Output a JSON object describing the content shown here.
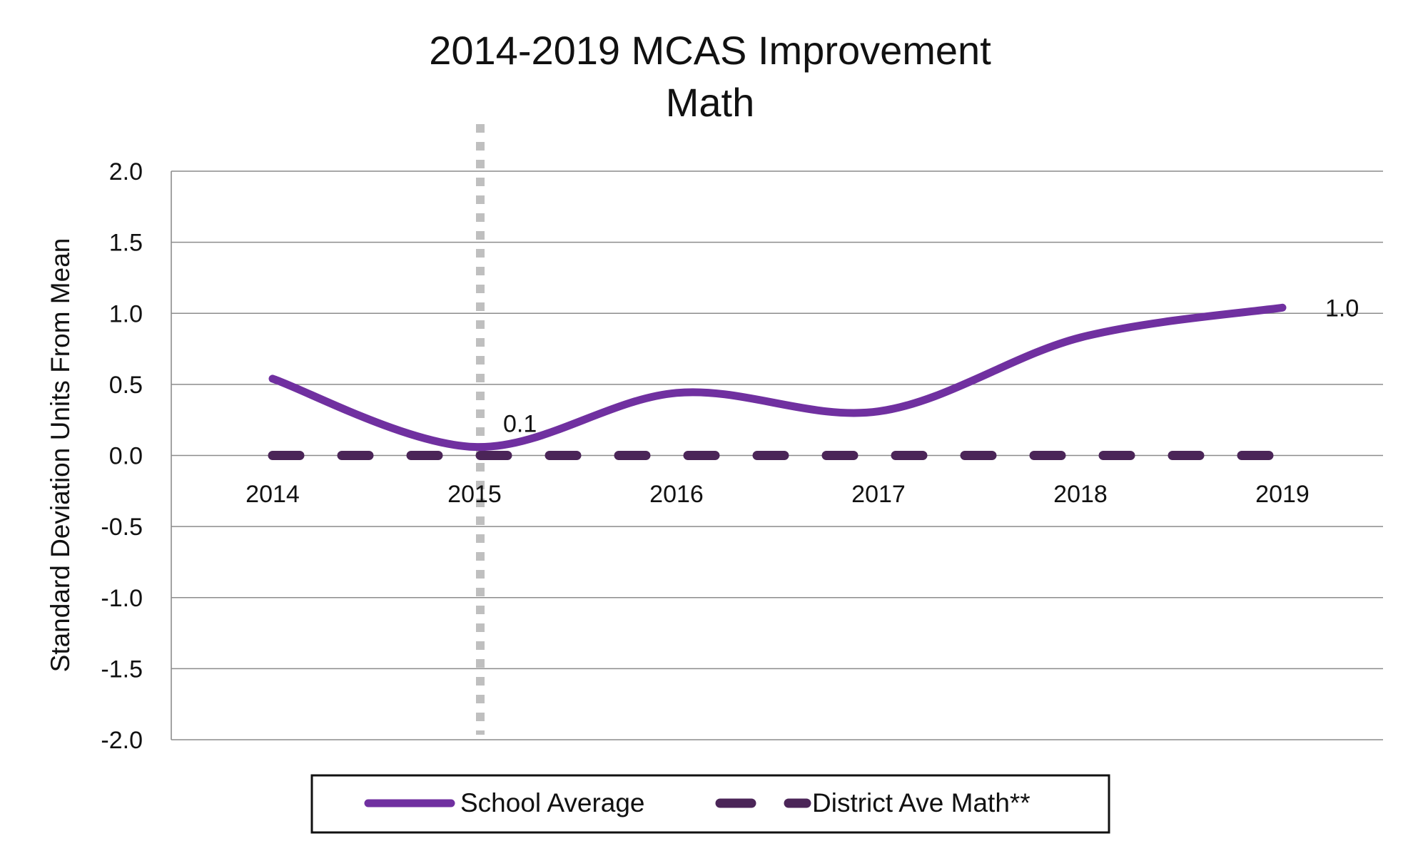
{
  "chart_data": {
    "type": "line",
    "title": [
      "2014-2019 MCAS Improvement",
      "Math"
    ],
    "xlabel": "",
    "ylabel": "Standard Deviation Units From Mean",
    "categories": [
      "2014",
      "2015",
      "2016",
      "2017",
      "2018",
      "2019"
    ],
    "ylim": [
      -2.0,
      2.0
    ],
    "yticks": [
      2.0,
      1.5,
      1.0,
      0.5,
      0.0,
      -0.5,
      -1.0,
      -1.5,
      -2.0
    ],
    "ytick_labels": [
      "2.0",
      "1.5",
      "1.0",
      "0.5",
      "0.0",
      "-0.5",
      "-1.0",
      "-1.5",
      "-2.0"
    ],
    "grid": true,
    "legend_position": "bottom",
    "series": [
      {
        "name": "School Average",
        "values": [
          0.54,
          0.06,
          0.44,
          0.31,
          0.83,
          1.04
        ],
        "color": "#7030a0",
        "style": "solid",
        "smooth": true,
        "data_labels": [
          {
            "index": 1,
            "text": "0.1"
          },
          {
            "index": 5,
            "text": "1.0"
          }
        ]
      },
      {
        "name": "District Ave Math**",
        "values": [
          0.0,
          0.0,
          0.0,
          0.0,
          0.0,
          0.0
        ],
        "color": "#4b2558",
        "style": "dashed",
        "smooth": false,
        "data_labels": []
      }
    ],
    "reference_line": {
      "x": 2015,
      "color": "#bfbfbf",
      "style": "dotted"
    }
  }
}
